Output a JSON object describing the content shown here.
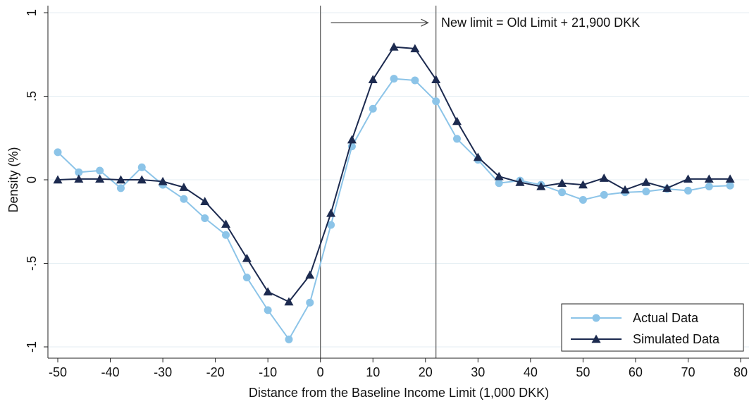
{
  "chart_data": {
    "type": "line",
    "xlabel": "Distance from the Baseline Income Limit (1,000 DKK)",
    "ylabel": "Density (%)",
    "xlim": [
      -50,
      80
    ],
    "ylim": [
      -1,
      1
    ],
    "xticks": [
      -50,
      -40,
      -30,
      -20,
      -10,
      0,
      10,
      20,
      30,
      40,
      50,
      60,
      70,
      80
    ],
    "xtick_labels": [
      "-50",
      "-40",
      "-30",
      "-20",
      "-10",
      "0",
      "10",
      "20",
      "30",
      "40",
      "50",
      "60",
      "70",
      "80"
    ],
    "yticks": [
      -1,
      -0.5,
      0,
      0.5,
      1
    ],
    "ytick_labels": [
      "-1",
      "-.5",
      "0",
      ".5",
      "1"
    ],
    "grid": true,
    "x": [
      -50,
      -46,
      -42,
      -38,
      -34,
      -30,
      -26,
      -22,
      -18,
      -14,
      -10,
      -6,
      -2,
      2,
      6,
      10,
      14,
      18,
      22,
      26,
      30,
      34,
      38,
      42,
      46,
      50,
      54,
      58,
      62,
      66,
      70,
      74,
      78
    ],
    "series": [
      {
        "name": "Actual Data",
        "color": "#8cc4e8",
        "marker": "circle",
        "values": [
          0.165,
          0.045,
          0.055,
          -0.05,
          0.075,
          -0.03,
          -0.115,
          -0.23,
          -0.33,
          -0.585,
          -0.78,
          -0.955,
          -0.735,
          -0.27,
          0.2,
          0.425,
          0.605,
          0.595,
          0.47,
          0.245,
          0.12,
          -0.02,
          -0.005,
          -0.03,
          -0.075,
          -0.12,
          -0.09,
          -0.075,
          -0.07,
          -0.055,
          -0.065,
          -0.04,
          -0.035
        ]
      },
      {
        "name": "Simulated Data",
        "color": "#1c2a4f",
        "marker": "triangle",
        "values": [
          0.0,
          0.005,
          0.005,
          0.0,
          0.0,
          -0.01,
          -0.045,
          -0.13,
          -0.265,
          -0.47,
          -0.67,
          -0.73,
          -0.57,
          -0.2,
          0.24,
          0.6,
          0.795,
          0.785,
          0.6,
          0.35,
          0.135,
          0.02,
          -0.015,
          -0.04,
          -0.02,
          -0.03,
          0.01,
          -0.06,
          -0.015,
          -0.05,
          0.005,
          0.005,
          0.005
        ]
      }
    ],
    "vlines": [
      0,
      22
    ],
    "annotation": "New limit = Old Limit + 21,900 DKK",
    "arrow": {
      "from": [
        2,
        0.94
      ],
      "to": [
        20.5,
        0.94
      ]
    },
    "legend_position": "bottom-right"
  }
}
